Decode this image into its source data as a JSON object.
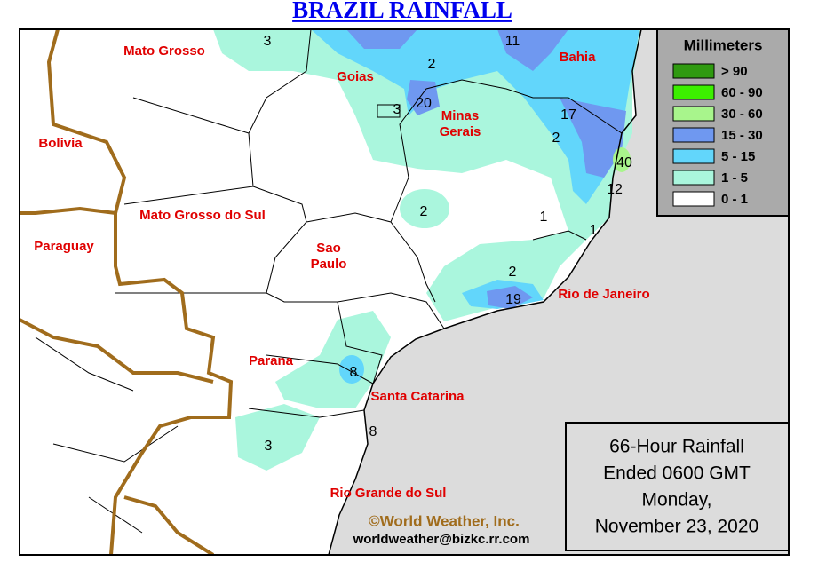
{
  "title": "BRAZIL RAINFALL",
  "regions": [
    [
      "Mato Grosso"
    ],
    [
      "Goias"
    ],
    [
      "Bahia"
    ],
    [
      "Minas",
      "Gerais"
    ],
    [
      "Bolivia"
    ],
    [
      "Mato Grosso do Sul"
    ],
    [
      "Paraguay"
    ],
    [
      "Sao",
      "Paulo"
    ],
    [
      "Rio de Janeiro"
    ],
    [
      "Parana"
    ],
    [
      "Santa Catarina"
    ],
    [
      "Rio Grande do Sul"
    ]
  ],
  "amounts": [
    "3",
    "11",
    "2",
    "20",
    "3",
    "17",
    "2",
    "40",
    "12",
    "2",
    "1",
    "1",
    "2",
    "19",
    "8",
    "3",
    "8"
  ],
  "legend": {
    "title": "Millimeters",
    "items": [
      {
        "label": "> 90",
        "color": "#2f9a10"
      },
      {
        "label": "60 - 90",
        "color": "#3cf000"
      },
      {
        "label": "30 - 60",
        "color": "#a8f58c"
      },
      {
        "label": "15 - 30",
        "color": "#6f98f0"
      },
      {
        "label": "5 - 15",
        "color": "#62d6fb"
      },
      {
        "label": "1 - 5",
        "color": "#aaf6dd"
      },
      {
        "label": "0 - 1",
        "color": "#ffffff"
      }
    ]
  },
  "info": [
    "66-Hour Rainfall",
    "Ended 0600 GMT",
    "Monday,",
    "November 23, 2020"
  ],
  "copyright": "©World Weather, Inc.",
  "email": "worldweather@bizkc.rr.com"
}
